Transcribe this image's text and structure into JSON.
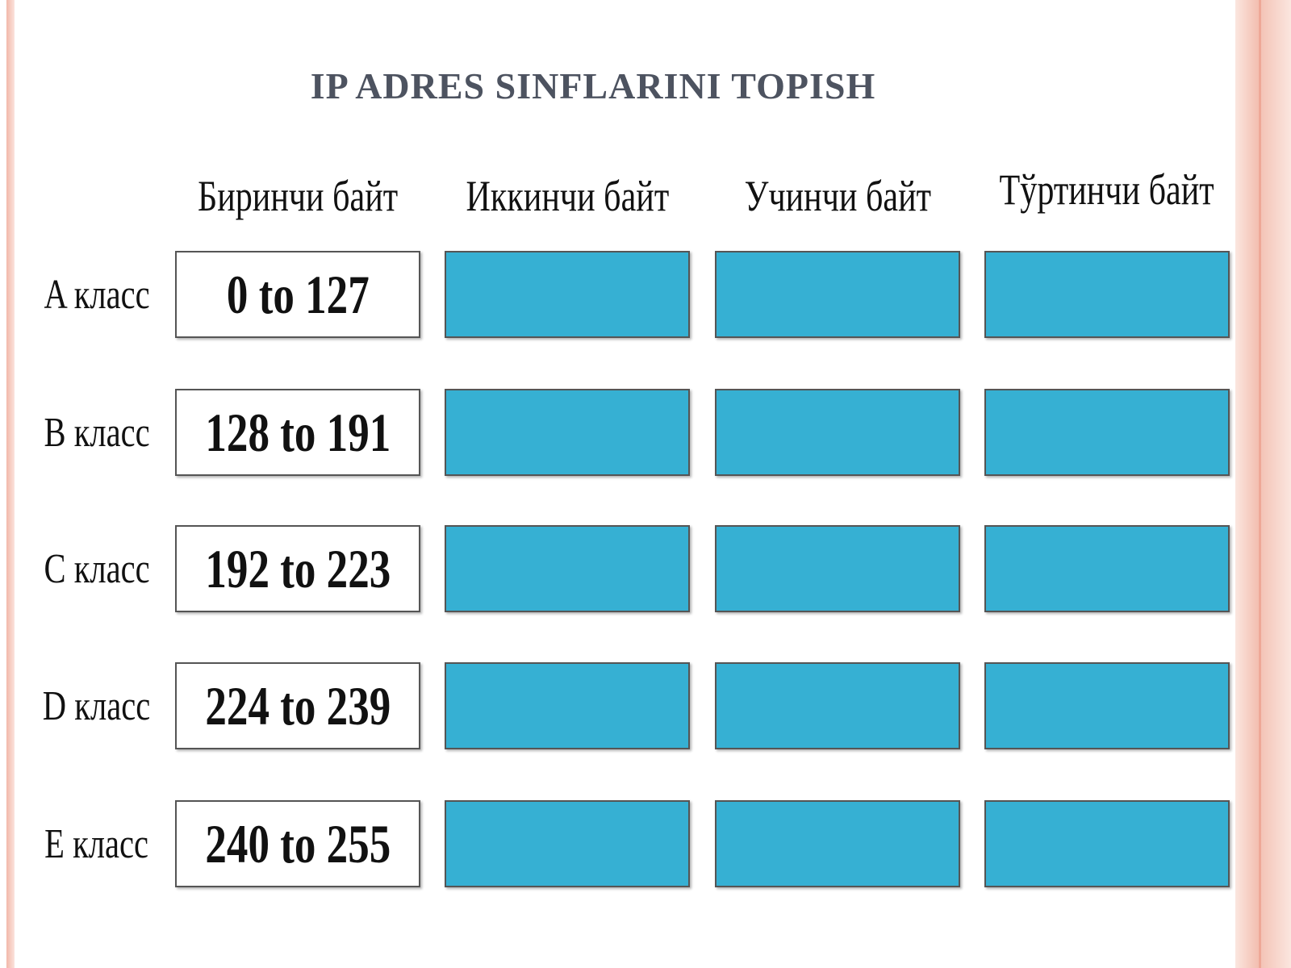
{
  "title": "IP ADRES SINFLARINI TOPISH",
  "table": {
    "headers": [
      "Биринчи байт",
      "Иккинчи байт",
      "Учинчи байт",
      "Тўртинчи байт"
    ],
    "rows": [
      [
        "A класс",
        "0 to 127"
      ],
      [
        "B класс",
        "128 to 191"
      ],
      [
        "C класс",
        "192 to 223"
      ],
      [
        "D класс",
        "224 to 239"
      ],
      [
        "E класс",
        "240 to 255"
      ]
    ]
  }
}
